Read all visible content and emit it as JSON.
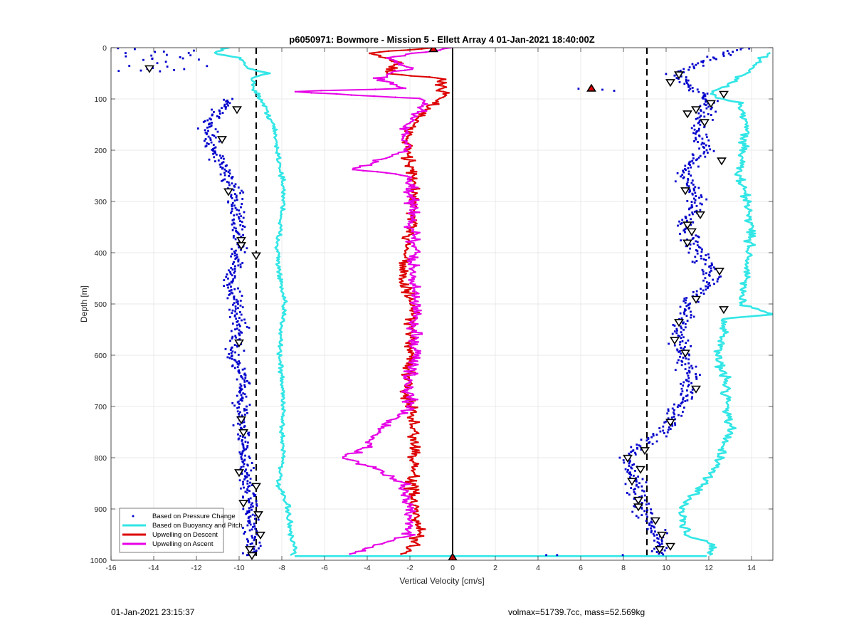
{
  "footer": {
    "timestamp": "01-Jan-2021 23:15:37",
    "stats": "volmax=51739.7cc, mass=52.569kg"
  },
  "chart_data": {
    "type": "scatter",
    "title": "p6050971: Bowmore - Mission 5 - Ellett Array 4 01-Jan-2021 18:40:00Z",
    "xlabel": "Vertical Velocity [cm/s]",
    "ylabel": "Depth [m]",
    "xlim": [
      -16,
      15
    ],
    "ylim": [
      0,
      1000
    ],
    "y_reversed": true,
    "grid": true,
    "x_ticks": [
      -16,
      -14,
      -12,
      -10,
      -8,
      -6,
      -4,
      -2,
      0,
      2,
      4,
      6,
      8,
      10,
      12,
      14
    ],
    "y_ticks": [
      0,
      100,
      200,
      300,
      400,
      500,
      600,
      700,
      800,
      900,
      1000
    ],
    "legend_position": "bottom-left",
    "reference_lines": {
      "dashed_x": [
        -9.2,
        9.1
      ],
      "solid_x": [
        0
      ]
    },
    "series": [
      {
        "name": "Based on Pressure Change",
        "style": "markers",
        "color": "#0000cc",
        "groups": [
          {
            "depth": [
              0,
              5,
              10,
              20,
              30,
              40,
              50
            ],
            "x": [
              -15.5,
              -14,
              -13,
              -12,
              -14.5,
              -14,
              -15
            ]
          },
          {
            "depth": [
              100,
              150,
              200,
              250,
              300,
              350,
              400,
              450,
              500,
              550,
              600,
              650,
              700,
              750,
              800,
              850,
              900,
              950,
              990
            ],
            "x": [
              -10.5,
              -11.5,
              -11.2,
              -10.5,
              -10.2,
              -10.0,
              -10.0,
              -10.4,
              -10.2,
              -9.9,
              -10.3,
              -9.8,
              -9.9,
              -9.8,
              -9.8,
              -9.6,
              -9.5,
              -9.3,
              -9.5
            ]
          },
          {
            "depth": [
              0,
              50,
              100,
              150,
              200,
              250,
              300,
              350,
              400,
              450,
              500,
              550,
              600,
              650,
              700,
              750,
              800,
              850,
              900,
              950,
              990
            ],
            "x": [
              13.5,
              10.5,
              12.0,
              11.5,
              11.8,
              10.8,
              11.5,
              10.8,
              11.5,
              12.2,
              11.0,
              10.6,
              10.8,
              11.2,
              10.7,
              9.8,
              8.2,
              8.6,
              8.8,
              9.6,
              9.7
            ]
          },
          {
            "depth": [
              80,
              82,
              84
            ],
            "x": [
              6.0,
              7.0,
              7.5
            ]
          },
          {
            "depth": [
              990,
              990,
              990,
              990
            ],
            "x": [
              -9.6,
              4.5,
              5.0,
              8.0
            ]
          }
        ],
        "triangles_left": [
          [
            -14.2,
            40
          ],
          [
            -10.1,
            120
          ],
          [
            -10.8,
            178
          ],
          [
            -10.5,
            280
          ],
          [
            -9.9,
            375
          ],
          [
            -9.9,
            385
          ],
          [
            -9.2,
            405
          ],
          [
            -10.0,
            575
          ],
          [
            -9.9,
            725
          ],
          [
            -9.8,
            750
          ],
          [
            -10.0,
            828
          ],
          [
            -9.2,
            855
          ],
          [
            -9.8,
            888
          ],
          [
            -9.1,
            910
          ],
          [
            -9.0,
            950
          ],
          [
            -9.5,
            978
          ],
          [
            -9.4,
            990
          ]
        ],
        "triangles_right": [
          [
            10.6,
            52
          ],
          [
            10.2,
            67
          ],
          [
            12.7,
            90
          ],
          [
            12.1,
            108
          ],
          [
            11.4,
            120
          ],
          [
            11.0,
            128
          ],
          [
            11.8,
            145
          ],
          [
            12.6,
            220
          ],
          [
            10.9,
            278
          ],
          [
            11.6,
            325
          ],
          [
            11.0,
            345
          ],
          [
            11.2,
            358
          ],
          [
            11.0,
            380
          ],
          [
            12.5,
            435
          ],
          [
            11.4,
            490
          ],
          [
            12.7,
            510
          ],
          [
            10.6,
            535
          ],
          [
            10.4,
            570
          ],
          [
            10.9,
            595
          ],
          [
            11.4,
            665
          ],
          [
            10.2,
            730
          ],
          [
            9.0,
            785
          ],
          [
            8.2,
            800
          ],
          [
            8.8,
            822
          ],
          [
            8.4,
            845
          ],
          [
            8.7,
            882
          ],
          [
            8.7,
            895
          ],
          [
            9.5,
            922
          ],
          [
            9.8,
            950
          ],
          [
            10.2,
            972
          ],
          [
            9.7,
            978
          ]
        ],
        "triangles_filled": [
          [
            6.5,
            80
          ],
          [
            -0.9,
            3
          ],
          [
            0,
            995
          ]
        ]
      },
      {
        "name": "Based on Buoyancy and Pitch",
        "style": "line",
        "color": "#33e6e6",
        "profiles": [
          {
            "depth": [
              0,
              10,
              20,
              40,
              50,
              60,
              80,
              100,
              150,
              200,
              250,
              300,
              350,
              400,
              450,
              500,
              550,
              600,
              650,
              700,
              750,
              800,
              850,
              900,
              950,
              980,
              990
            ],
            "x": [
              -10.5,
              -11.2,
              -10.0,
              -9.6,
              -8.6,
              -9.4,
              -9.3,
              -9.0,
              -8.4,
              -8.2,
              -8.0,
              -7.9,
              -8.1,
              -8.2,
              -8.1,
              -7.9,
              -8.0,
              -8.1,
              -8.0,
              -7.9,
              -8.0,
              -7.9,
              -8.2,
              -7.7,
              -7.6,
              -7.4,
              -7.5
            ]
          },
          {
            "depth": [
              10,
              30,
              50,
              70,
              90,
              110,
              150,
              200,
              250,
              300,
              350,
              400,
              450,
              500,
              520,
              530,
              550,
              600,
              650,
              700,
              750,
              800,
              850,
              900,
              950,
              970,
              990
            ],
            "x": [
              14.8,
              14.2,
              13.8,
              13.0,
              12.0,
              13.5,
              13.8,
              13.6,
              13.4,
              13.8,
              14.0,
              13.9,
              13.7,
              13.5,
              14.8,
              12.6,
              12.8,
              12.4,
              12.8,
              12.9,
              13.0,
              12.5,
              11.8,
              10.7,
              10.9,
              12.3,
              12.0
            ]
          },
          {
            "depth": [
              992,
              992
            ],
            "x": [
              -7.4,
              11.9
            ]
          }
        ]
      },
      {
        "name": "Upwelling on Descent",
        "style": "line-markers",
        "color": "#dd0000",
        "depth": [
          0,
          10,
          30,
          50,
          60,
          80,
          90,
          100,
          150,
          200,
          250,
          300,
          350,
          400,
          450,
          500,
          550,
          600,
          650,
          700,
          750,
          800,
          850,
          900,
          950,
          990
        ],
        "x": [
          -1.0,
          -3.8,
          -2.5,
          -3.2,
          -0.5,
          -0.5,
          -0.3,
          -0.6,
          -2.0,
          -2.1,
          -1.9,
          -1.8,
          -2.0,
          -2.1,
          -2.4,
          -1.9,
          -2.0,
          -1.9,
          -2.2,
          -2.0,
          -1.8,
          -1.8,
          -1.9,
          -1.8,
          -1.6,
          -2.2
        ]
      },
      {
        "name": "Upwelling on Ascent",
        "style": "line-markers",
        "color": "#e600e6",
        "depth": [
          0,
          20,
          40,
          60,
          80,
          85,
          100,
          120,
          150,
          200,
          237,
          250,
          300,
          350,
          400,
          450,
          500,
          550,
          600,
          650,
          700,
          750,
          780,
          800,
          820,
          850,
          900,
          950,
          990
        ],
        "x": [
          0.0,
          -3.2,
          -2.0,
          -3.5,
          -2.0,
          -7.9,
          -1.2,
          -1.5,
          -2.1,
          -2.2,
          -4.6,
          -2.0,
          -1.9,
          -1.9,
          -1.8,
          -1.9,
          -1.7,
          -1.8,
          -1.7,
          -2.1,
          -2.0,
          -3.5,
          -4.0,
          -5.3,
          -3.6,
          -2.4,
          -2.0,
          -2.0,
          -5.0
        ]
      }
    ]
  }
}
